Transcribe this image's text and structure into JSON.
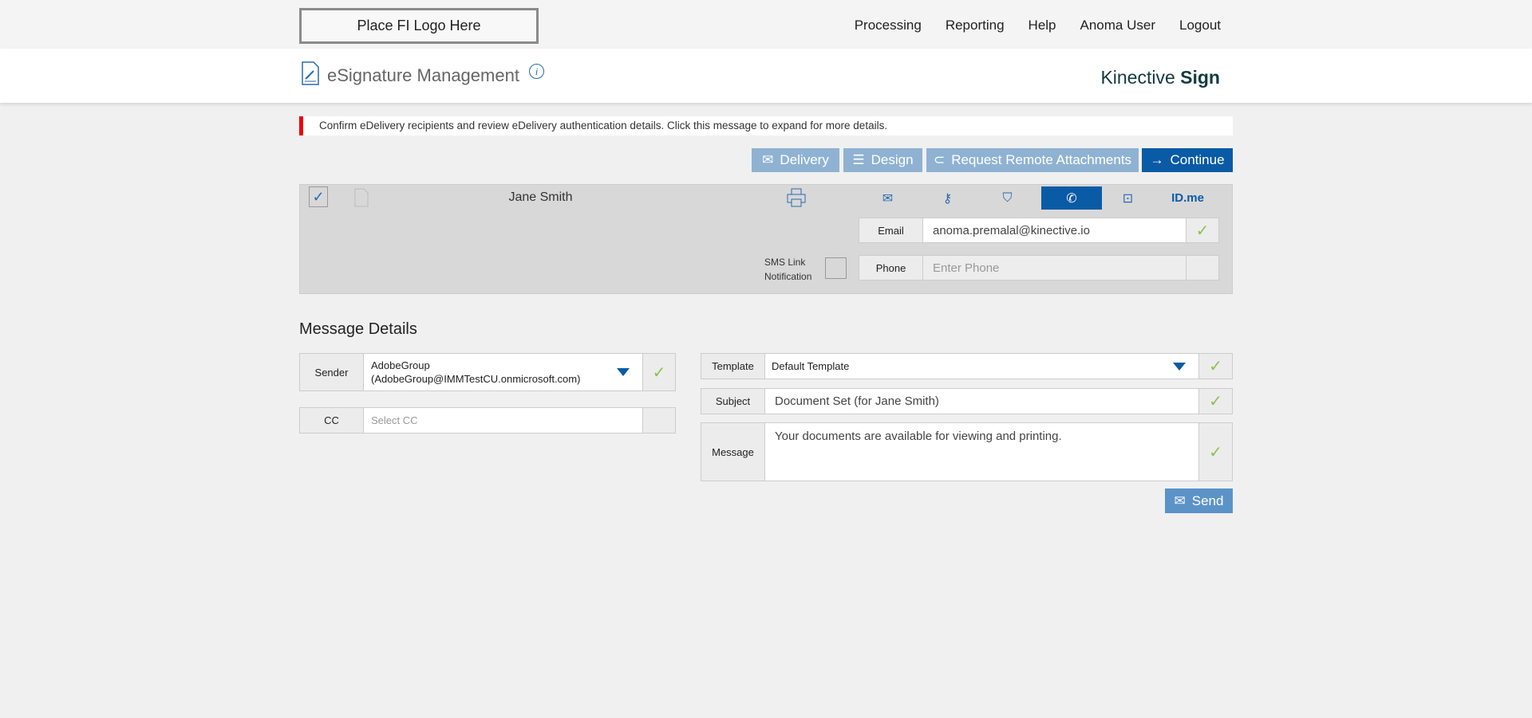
{
  "topbar": {
    "logo_text": "Place FI Logo Here",
    "nav": [
      "Processing",
      "Reporting",
      "Help",
      "Anoma User",
      "Logout"
    ]
  },
  "header": {
    "title": "eSignature Management",
    "info_icon": "i",
    "brand_light": "Kinective",
    "brand_bold": "Sign"
  },
  "alert": {
    "text": "Confirm eDelivery recipients and review eDelivery authentication details. Click this message to expand for more details.",
    "color": "#e00000"
  },
  "actions": {
    "delivery": "Delivery",
    "design": "Design",
    "attachments": "Request Remote Attachments",
    "continue": "Continue"
  },
  "recipient": {
    "name": "Jane Smith",
    "checked": true,
    "auth_methods": [
      "email-auth",
      "key-auth",
      "question-auth",
      "phone-auth",
      "id-auth",
      "ID.me"
    ],
    "active_method": "phone-auth",
    "idme_label": "ID.me",
    "email_label": "Email",
    "email_value": "anoma.premalal@kinective.io",
    "sms_label_1": "SMS Link",
    "sms_label_2": "Notification",
    "phone_label": "Phone",
    "phone_placeholder": "Enter Phone"
  },
  "message_details": {
    "title": "Message Details",
    "sender_label": "Sender",
    "sender_line1": "AdobeGroup",
    "sender_line2": "(AdobeGroup@IMMTestCU.onmicrosoft.com)",
    "cc_label": "CC",
    "cc_placeholder": "Select CC",
    "template_label": "Template",
    "template_value": "Default Template",
    "subject_label": "Subject",
    "subject_value": "Document Set (for Jane Smith)",
    "message_label": "Message",
    "message_value": "Your documents are available for viewing and printing.",
    "send": "Send"
  },
  "colors": {
    "accent": "#0a5ba6",
    "light_button": "#8fb2d2",
    "check": "#8bc34a"
  }
}
